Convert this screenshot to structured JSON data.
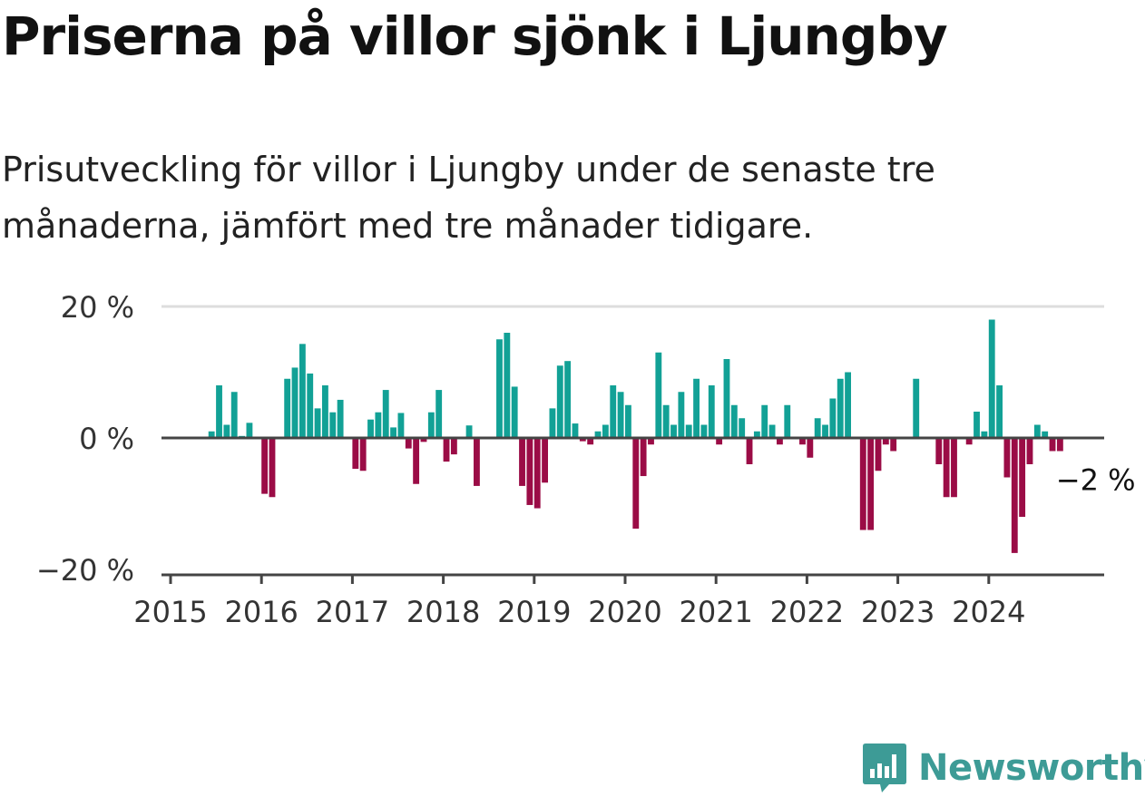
{
  "title": "Priserna på villor sjönk i Ljungby",
  "subtitle": "Prisutveckling för villor i Ljungby under de senaste tre månaderna, jämfört med tre månader tidigare.",
  "brand": {
    "name": "Newsworthy",
    "color": "#3d9b96",
    "icon": "newsworthy-logo-icon"
  },
  "colors": {
    "positive": "#12a196",
    "negative": "#9b0c46",
    "axis": "#444444",
    "grid": "#dddddd"
  },
  "chart_data": {
    "type": "bar",
    "title": "",
    "xlabel": "",
    "ylabel": "",
    "ylim": [
      -20,
      20
    ],
    "y_ticks": [
      20,
      0,
      -20
    ],
    "y_tick_labels": [
      "20 %",
      "0 %",
      "−20 %"
    ],
    "x_ticks": [
      "2015",
      "2016",
      "2017",
      "2018",
      "2019",
      "2020",
      "2021",
      "2022",
      "2023",
      "2024"
    ],
    "x_range": [
      "2015-01",
      "2025-04"
    ],
    "grid": "horizontal",
    "annotation": {
      "label": "−2 %",
      "x": "2024-10",
      "value": -2
    },
    "series": [
      {
        "values": [
          {
            "x": "2015-06",
            "y": 1
          },
          {
            "x": "2015-07",
            "y": 8
          },
          {
            "x": "2015-08",
            "y": 2
          },
          {
            "x": "2015-09",
            "y": 7
          },
          {
            "x": "2015-10",
            "y": 0.3
          },
          {
            "x": "2015-11",
            "y": 2.3
          },
          {
            "x": "2016-01",
            "y": -8.5
          },
          {
            "x": "2016-02",
            "y": -9
          },
          {
            "x": "2016-04",
            "y": 9
          },
          {
            "x": "2016-05",
            "y": 10.7
          },
          {
            "x": "2016-06",
            "y": 14.3
          },
          {
            "x": "2016-07",
            "y": 9.8
          },
          {
            "x": "2016-08",
            "y": 4.5
          },
          {
            "x": "2016-09",
            "y": 8
          },
          {
            "x": "2016-10",
            "y": 3.9
          },
          {
            "x": "2016-11",
            "y": 5.8
          },
          {
            "x": "2017-01",
            "y": -4.7
          },
          {
            "x": "2017-02",
            "y": -5
          },
          {
            "x": "2017-03",
            "y": 2.8
          },
          {
            "x": "2017-04",
            "y": 3.9
          },
          {
            "x": "2017-05",
            "y": 7.3
          },
          {
            "x": "2017-06",
            "y": 1.6
          },
          {
            "x": "2017-07",
            "y": 3.8
          },
          {
            "x": "2017-08",
            "y": -1.6
          },
          {
            "x": "2017-09",
            "y": -7
          },
          {
            "x": "2017-10",
            "y": -0.6
          },
          {
            "x": "2017-11",
            "y": 3.9
          },
          {
            "x": "2017-12",
            "y": 7.3
          },
          {
            "x": "2018-01",
            "y": -3.6
          },
          {
            "x": "2018-02",
            "y": -2.5
          },
          {
            "x": "2018-04",
            "y": 1.9
          },
          {
            "x": "2018-05",
            "y": -7.3
          },
          {
            "x": "2018-08",
            "y": 15
          },
          {
            "x": "2018-09",
            "y": 16
          },
          {
            "x": "2018-10",
            "y": 7.8
          },
          {
            "x": "2018-11",
            "y": -7.3
          },
          {
            "x": "2018-12",
            "y": -10.2
          },
          {
            "x": "2019-01",
            "y": -10.7
          },
          {
            "x": "2019-02",
            "y": -6.8
          },
          {
            "x": "2019-03",
            "y": 4.5
          },
          {
            "x": "2019-04",
            "y": 11
          },
          {
            "x": "2019-05",
            "y": 11.7
          },
          {
            "x": "2019-06",
            "y": 2.2
          },
          {
            "x": "2019-07",
            "y": -0.5
          },
          {
            "x": "2019-08",
            "y": -1
          },
          {
            "x": "2019-09",
            "y": 1
          },
          {
            "x": "2019-10",
            "y": 2
          },
          {
            "x": "2019-11",
            "y": 8
          },
          {
            "x": "2019-12",
            "y": 7
          },
          {
            "x": "2020-01",
            "y": 5
          },
          {
            "x": "2020-02",
            "y": -13.8
          },
          {
            "x": "2020-03",
            "y": -5.8
          },
          {
            "x": "2020-04",
            "y": -1
          },
          {
            "x": "2020-05",
            "y": 13
          },
          {
            "x": "2020-06",
            "y": 5
          },
          {
            "x": "2020-07",
            "y": 2
          },
          {
            "x": "2020-08",
            "y": 7
          },
          {
            "x": "2020-09",
            "y": 2
          },
          {
            "x": "2020-10",
            "y": 9
          },
          {
            "x": "2020-11",
            "y": 2
          },
          {
            "x": "2020-12",
            "y": 8
          },
          {
            "x": "2021-01",
            "y": -1
          },
          {
            "x": "2021-02",
            "y": 12
          },
          {
            "x": "2021-03",
            "y": 5
          },
          {
            "x": "2021-04",
            "y": 3
          },
          {
            "x": "2021-05",
            "y": -4
          },
          {
            "x": "2021-06",
            "y": 1
          },
          {
            "x": "2021-07",
            "y": 5
          },
          {
            "x": "2021-08",
            "y": 2
          },
          {
            "x": "2021-09",
            "y": -1
          },
          {
            "x": "2021-10",
            "y": 5
          },
          {
            "x": "2021-12",
            "y": -1
          },
          {
            "x": "2022-01",
            "y": -3
          },
          {
            "x": "2022-02",
            "y": 3
          },
          {
            "x": "2022-03",
            "y": 2
          },
          {
            "x": "2022-04",
            "y": 6
          },
          {
            "x": "2022-05",
            "y": 9
          },
          {
            "x": "2022-06",
            "y": 10
          },
          {
            "x": "2022-08",
            "y": -14
          },
          {
            "x": "2022-09",
            "y": -14
          },
          {
            "x": "2022-10",
            "y": -5
          },
          {
            "x": "2022-11",
            "y": -1
          },
          {
            "x": "2022-12",
            "y": -2
          },
          {
            "x": "2023-03",
            "y": 9
          },
          {
            "x": "2023-06",
            "y": -4
          },
          {
            "x": "2023-07",
            "y": -9
          },
          {
            "x": "2023-08",
            "y": -9
          },
          {
            "x": "2023-10",
            "y": -1
          },
          {
            "x": "2023-11",
            "y": 4
          },
          {
            "x": "2023-12",
            "y": 1
          },
          {
            "x": "2024-01",
            "y": 18
          },
          {
            "x": "2024-02",
            "y": 8
          },
          {
            "x": "2024-03",
            "y": -6
          },
          {
            "x": "2024-04",
            "y": -17.5
          },
          {
            "x": "2024-05",
            "y": -12
          },
          {
            "x": "2024-06",
            "y": -4
          },
          {
            "x": "2024-07",
            "y": 2
          },
          {
            "x": "2024-08",
            "y": 1
          },
          {
            "x": "2024-09",
            "y": -2
          },
          {
            "x": "2024-10",
            "y": -2
          }
        ]
      }
    ]
  }
}
